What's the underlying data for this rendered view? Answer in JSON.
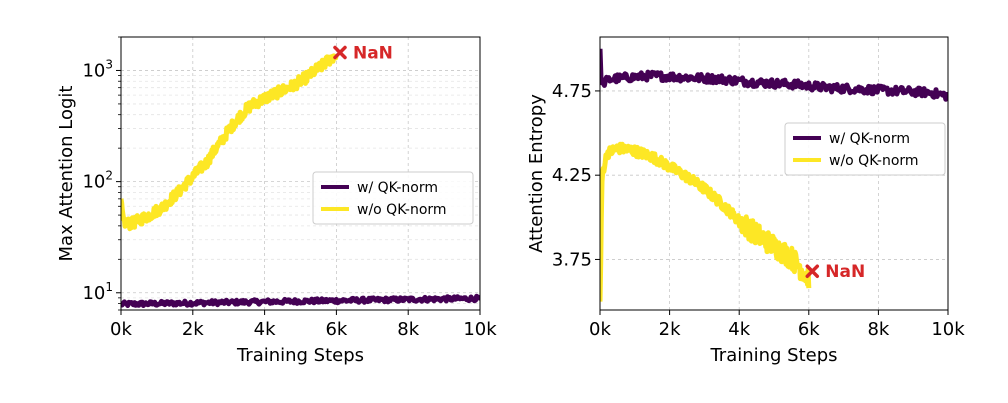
{
  "chart_data": [
    {
      "type": "line",
      "xlabel": "Training Steps",
      "ylabel": "Max Attention Logit",
      "xlim": [
        0,
        10000
      ],
      "ylim": [
        7,
        2000
      ],
      "yscale": "log",
      "grid": true,
      "legend_position": "center-right",
      "x_ticks": [
        0,
        2000,
        4000,
        6000,
        8000,
        10000
      ],
      "x_tick_labels": [
        "0k",
        "2k",
        "4k",
        "6k",
        "8k",
        "10k"
      ],
      "y_ticks": [
        10,
        100,
        1000
      ],
      "y_tick_labels": [
        {
          "base": "10",
          "exp": "1"
        },
        {
          "base": "10",
          "exp": "2"
        },
        {
          "base": "10",
          "exp": "3"
        }
      ],
      "series": [
        {
          "name": "w/ QK-norm",
          "color": "#440154",
          "x": [
            0,
            2000,
            4000,
            6000,
            8000,
            10000
          ],
          "y": [
            7.9,
            8.1,
            8.3,
            8.5,
            8.7,
            8.9
          ]
        },
        {
          "name": "w/o QK-norm",
          "color": "#fde725",
          "x": [
            0,
            50,
            150,
            300,
            500,
            800,
            1200,
            1600,
            2000,
            2400,
            2800,
            3200,
            3600,
            4000,
            4400,
            4800,
            5200,
            5600,
            6000
          ],
          "y": [
            70,
            45,
            42,
            42,
            45,
            50,
            60,
            80,
            110,
            150,
            230,
            350,
            480,
            560,
            640,
            730,
            880,
            1100,
            1400
          ]
        }
      ],
      "annotations": [
        {
          "text": "NaN",
          "x": 6100,
          "y": 1450,
          "color": "#d62728"
        }
      ]
    },
    {
      "type": "line",
      "xlabel": "Training Steps",
      "ylabel": "Attention Entropy",
      "xlim": [
        0,
        10000
      ],
      "ylim": [
        3.45,
        5.07
      ],
      "grid": true,
      "legend_position": "center-right",
      "x_ticks": [
        0,
        2000,
        4000,
        6000,
        8000,
        10000
      ],
      "x_tick_labels": [
        "0k",
        "2k",
        "4k",
        "6k",
        "8k",
        "10k"
      ],
      "y_ticks": [
        3.75,
        4.25,
        4.75
      ],
      "y_tick_labels": [
        "3.75",
        "4.25",
        "4.75"
      ],
      "series": [
        {
          "name": "w/ QK-norm",
          "color": "#440154",
          "x": [
            0,
            40,
            100,
            300,
            800,
            1500,
            2500,
            3500,
            4500,
            5500,
            6500,
            7500,
            8500,
            9500,
            10000
          ],
          "y": [
            5.0,
            4.78,
            4.8,
            4.82,
            4.83,
            4.84,
            4.83,
            4.82,
            4.8,
            4.79,
            4.77,
            4.76,
            4.75,
            4.74,
            4.72
          ]
        },
        {
          "name": "w/o QK-norm",
          "color": "#fde725",
          "x": [
            0,
            60,
            200,
            500,
            900,
            1500,
            2000,
            2500,
            3000,
            3500,
            4000,
            4500,
            5000,
            5500,
            5800,
            6000
          ],
          "y": [
            3.5,
            4.25,
            4.38,
            4.41,
            4.4,
            4.36,
            4.3,
            4.24,
            4.17,
            4.08,
            3.98,
            3.9,
            3.83,
            3.76,
            3.69,
            3.64
          ]
        }
      ],
      "annotations": [
        {
          "text": "NaN",
          "x": 6100,
          "y": 3.68,
          "color": "#d62728"
        }
      ]
    }
  ]
}
